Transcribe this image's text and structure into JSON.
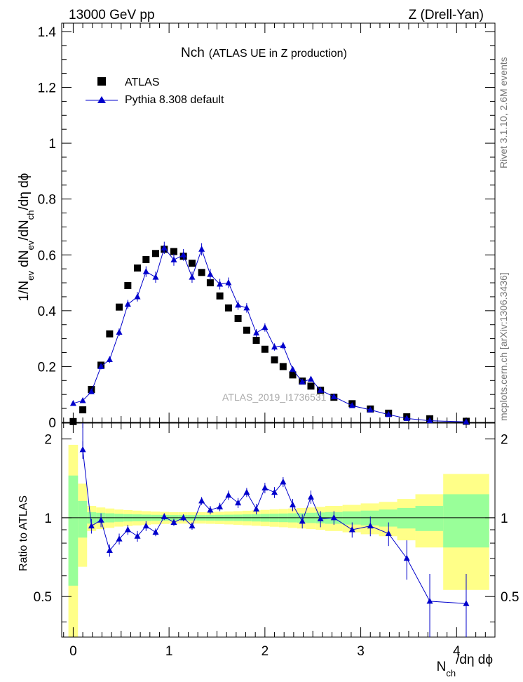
{
  "header": {
    "left": "13000 GeV pp",
    "right": "Z (Drell-Yan)"
  },
  "side_labels": {
    "rivet": "Rivet 3.1.10,  2.6M events",
    "mcplots": "mcplots.cern.ch [arXiv:1306.3436]"
  },
  "chart_data": [
    {
      "type": "scatter",
      "panel": "main",
      "title": "Nch",
      "subtitle": "(ATLAS UE in Z production)",
      "watermark": "ATLAS_2019_I1736531",
      "ylabel": "1/N_ev dN_ev/dN_ch/dη dϕ",
      "ylim": [
        0,
        1.43
      ],
      "xlim": [
        -0.12,
        4.4
      ],
      "yticks": [
        0,
        0.2,
        0.4,
        0.6,
        0.8,
        1,
        1.2,
        1.4
      ],
      "ytick_labels": [
        "0",
        "0.2",
        "0.4",
        "0.6",
        "0.8",
        "1",
        "1.2",
        "1.4"
      ],
      "legend": {
        "position": "top-left"
      },
      "series": [
        {
          "name": "ATLAS",
          "marker": "square",
          "color": "#000000",
          "x": [
            0.0,
            0.1,
            0.19,
            0.29,
            0.38,
            0.48,
            0.57,
            0.67,
            0.76,
            0.86,
            0.95,
            1.05,
            1.15,
            1.24,
            1.34,
            1.43,
            1.53,
            1.62,
            1.72,
            1.81,
            1.91,
            2.0,
            2.1,
            2.19,
            2.29,
            2.39,
            2.48,
            2.58,
            2.72,
            2.91,
            3.1,
            3.29,
            3.48,
            3.72,
            4.1
          ],
          "y": [
            0.003,
            0.045,
            0.118,
            0.205,
            0.317,
            0.413,
            0.49,
            0.553,
            0.583,
            0.605,
            0.62,
            0.612,
            0.595,
            0.57,
            0.537,
            0.5,
            0.453,
            0.41,
            0.372,
            0.33,
            0.294,
            0.262,
            0.224,
            0.2,
            0.17,
            0.148,
            0.13,
            0.115,
            0.09,
            0.067,
            0.048,
            0.033,
            0.02,
            0.013,
            0.004
          ]
        },
        {
          "name": "Pythia 8.308 default",
          "marker": "triangle",
          "color": "#0000cc",
          "x": [
            0.0,
            0.1,
            0.19,
            0.29,
            0.38,
            0.48,
            0.57,
            0.67,
            0.76,
            0.86,
            0.95,
            1.05,
            1.15,
            1.24,
            1.34,
            1.43,
            1.53,
            1.62,
            1.72,
            1.81,
            1.91,
            2.0,
            2.1,
            2.19,
            2.29,
            2.39,
            2.48,
            2.58,
            2.72,
            2.91,
            3.1,
            3.29,
            3.48,
            3.72,
            4.1
          ],
          "y": [
            0.068,
            0.078,
            0.11,
            0.2,
            0.225,
            0.323,
            0.423,
            0.45,
            0.54,
            0.52,
            0.625,
            0.582,
            0.6,
            0.52,
            0.62,
            0.53,
            0.495,
            0.5,
            0.42,
            0.41,
            0.32,
            0.34,
            0.27,
            0.275,
            0.19,
            0.145,
            0.155,
            0.115,
            0.092,
            0.06,
            0.045,
            0.028,
            0.014,
            0.006,
            0.002
          ],
          "yerr": [
            0.005,
            0.006,
            0.008,
            0.01,
            0.012,
            0.014,
            0.016,
            0.017,
            0.019,
            0.02,
            0.022,
            0.021,
            0.021,
            0.02,
            0.022,
            0.02,
            0.019,
            0.019,
            0.017,
            0.017,
            0.014,
            0.015,
            0.013,
            0.013,
            0.01,
            0.009,
            0.009,
            0.008,
            0.006,
            0.005,
            0.004,
            0.003,
            0.002,
            0.0015,
            0.001
          ]
        }
      ]
    },
    {
      "type": "scatter",
      "panel": "ratio",
      "ylabel": "Ratio to ATLAS",
      "xlabel": "N_ch/dη dϕ",
      "ylim": [
        0.35,
        2.3
      ],
      "xlim": [
        -0.12,
        4.4
      ],
      "yticks": [
        0.5,
        1,
        2
      ],
      "ytick_labels": [
        "0.5",
        "1",
        "2"
      ],
      "xticks": [
        0,
        1,
        2,
        3,
        4
      ],
      "xtick_labels": [
        "0",
        "1",
        "2",
        "3",
        "4"
      ],
      "bands": {
        "edges": [
          -0.05,
          0.05,
          0.145,
          0.24,
          0.335,
          0.43,
          0.525,
          0.62,
          0.715,
          0.81,
          0.905,
          1.0,
          1.1,
          1.195,
          1.29,
          1.385,
          1.48,
          1.575,
          1.67,
          1.765,
          1.86,
          1.955,
          2.05,
          2.145,
          2.24,
          2.335,
          2.43,
          2.53,
          2.63,
          2.81,
          3.0,
          3.19,
          3.38,
          3.57,
          3.86,
          4.34
        ],
        "green_half": [
          0.45,
          0.16,
          0.05,
          0.045,
          0.04,
          0.035,
          0.032,
          0.03,
          0.028,
          0.026,
          0.025,
          0.024,
          0.024,
          0.024,
          0.024,
          0.025,
          0.026,
          0.027,
          0.028,
          0.03,
          0.032,
          0.034,
          0.036,
          0.038,
          0.04,
          0.042,
          0.045,
          0.048,
          0.052,
          0.058,
          0.065,
          0.075,
          0.09,
          0.11,
          0.23
        ],
        "yellow_half": [
          0.9,
          0.35,
          0.11,
          0.095,
          0.085,
          0.075,
          0.07,
          0.065,
          0.06,
          0.056,
          0.053,
          0.05,
          0.05,
          0.05,
          0.05,
          0.052,
          0.054,
          0.057,
          0.06,
          0.064,
          0.068,
          0.072,
          0.076,
          0.08,
          0.085,
          0.09,
          0.095,
          0.1,
          0.11,
          0.12,
          0.135,
          0.15,
          0.18,
          0.23,
          0.47
        ],
        "green_color": "#99ff99",
        "yellow_color": "#ffff88"
      },
      "series": [
        {
          "name": "Pythia 8.308 default",
          "marker": "triangle",
          "color": "#0000cc",
          "x": [
            0.1,
            0.19,
            0.29,
            0.38,
            0.48,
            0.57,
            0.67,
            0.76,
            0.86,
            0.95,
            1.05,
            1.15,
            1.24,
            1.34,
            1.43,
            1.53,
            1.62,
            1.72,
            1.81,
            1.91,
            2.0,
            2.1,
            2.19,
            2.29,
            2.39,
            2.48,
            2.58,
            2.72,
            2.91,
            3.1,
            3.29,
            3.48,
            3.72,
            4.1
          ],
          "y": [
            1.82,
            0.93,
            0.98,
            0.75,
            0.83,
            0.9,
            0.85,
            0.93,
            0.88,
            1.01,
            0.96,
            1.0,
            0.93,
            1.16,
            1.07,
            1.1,
            1.22,
            1.14,
            1.25,
            1.08,
            1.3,
            1.25,
            1.37,
            1.12,
            0.97,
            1.2,
            0.99,
            1.0,
            0.9,
            0.93,
            0.87,
            0.7,
            0.48,
            0.47
          ],
          "yerr": [
            0.14,
            0.06,
            0.06,
            0.04,
            0.04,
            0.04,
            0.04,
            0.04,
            0.03,
            0.03,
            0.03,
            0.03,
            0.03,
            0.04,
            0.04,
            0.04,
            0.05,
            0.05,
            0.05,
            0.05,
            0.06,
            0.06,
            0.06,
            0.06,
            0.06,
            0.07,
            0.07,
            0.06,
            0.06,
            0.08,
            0.09,
            0.12,
            0.13,
            0.14
          ]
        }
      ]
    }
  ]
}
